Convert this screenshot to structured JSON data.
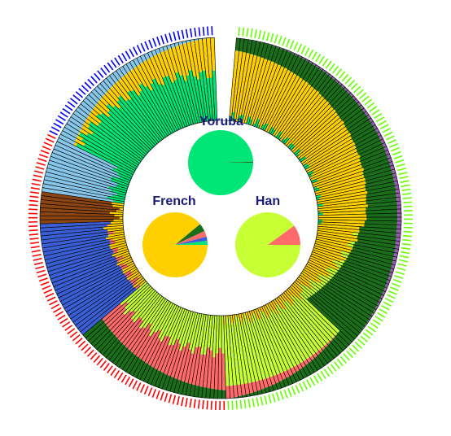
{
  "chart_data": {
    "type": "circular-stacked-bar",
    "component_colors": {
      "c1": "#00e676",
      "c2": "#ffd000",
      "c3": "#c6ff33",
      "c4": "#ff6b6b",
      "c5": "#3a5fd4",
      "c6": "#1a6e1a",
      "c7": "#87c6e8",
      "c8": "#8b4513",
      "c9": "#ff66cc",
      "c10": "#9b59b6"
    },
    "label_group_colors": {
      "blue": "#0000ff",
      "red": "#ff0000",
      "green": "#66ff00"
    },
    "sectors": [
      {
        "label_color": "green",
        "bars": 70,
        "start_mix": {
          "c2": 0.8,
          "c1": 0.05,
          "c6": 0.15
        },
        "end_mix": {
          "c2": 0.55,
          "c6": 0.4,
          "c10": 0.05
        }
      },
      {
        "label_color": "green",
        "bars": 30,
        "start_mix": {
          "c2": 0.5,
          "c6": 0.45,
          "c10": 0.05
        },
        "end_mix": {
          "c6": 0.75,
          "c3": 0.15,
          "c2": 0.1
        }
      },
      {
        "label_color": "green",
        "bars": 35,
        "start_mix": {
          "c3": 0.65,
          "c6": 0.2,
          "c2": 0.15
        },
        "end_mix": {
          "c3": 0.8,
          "c4": 0.15,
          "c2": 0.05
        }
      },
      {
        "label_color": "red",
        "bars": 40,
        "start_mix": {
          "c3": 0.45,
          "c4": 0.45,
          "c6": 0.1
        },
        "end_mix": {
          "c3": 0.4,
          "c4": 0.3,
          "c6": 0.3
        }
      },
      {
        "label_color": "red",
        "bars": 30,
        "start_mix": {
          "c5": 0.85,
          "c2": 0.1,
          "c4": 0.05
        },
        "end_mix": {
          "c5": 0.8,
          "c2": 0.2
        }
      },
      {
        "label_color": "red",
        "bars": 8,
        "start_mix": {
          "c8": 0.9,
          "c2": 0.1
        },
        "end_mix": {
          "c8": 0.9,
          "c2": 0.1
        }
      },
      {
        "label_color": "red",
        "bars": 14,
        "start_mix": {
          "c7": 0.85,
          "c1": 0.15
        },
        "end_mix": {
          "c7": 0.8,
          "c1": 0.2
        }
      },
      {
        "label_color": "blue",
        "bars": 48,
        "start_mix": {
          "c1": 0.75,
          "c7": 0.2,
          "c2": 0.05
        },
        "end_mix": {
          "c1": 0.55,
          "c2": 0.45
        }
      }
    ],
    "pies": [
      {
        "title": "Yoruba",
        "slices": [
          {
            "component": "c1",
            "value": 0.995
          },
          {
            "component": "c6",
            "value": 0.005
          }
        ]
      },
      {
        "title": "French",
        "slices": [
          {
            "component": "c2",
            "value": 0.89
          },
          {
            "component": "c6",
            "value": 0.04
          },
          {
            "component": "c4",
            "value": 0.03
          },
          {
            "component": "c5",
            "value": 0.02
          },
          {
            "component": "c1",
            "value": 0.02
          }
        ]
      },
      {
        "title": "Han",
        "slices": [
          {
            "component": "c3",
            "value": 0.9
          },
          {
            "component": "c4",
            "value": 0.1
          }
        ]
      }
    ]
  }
}
